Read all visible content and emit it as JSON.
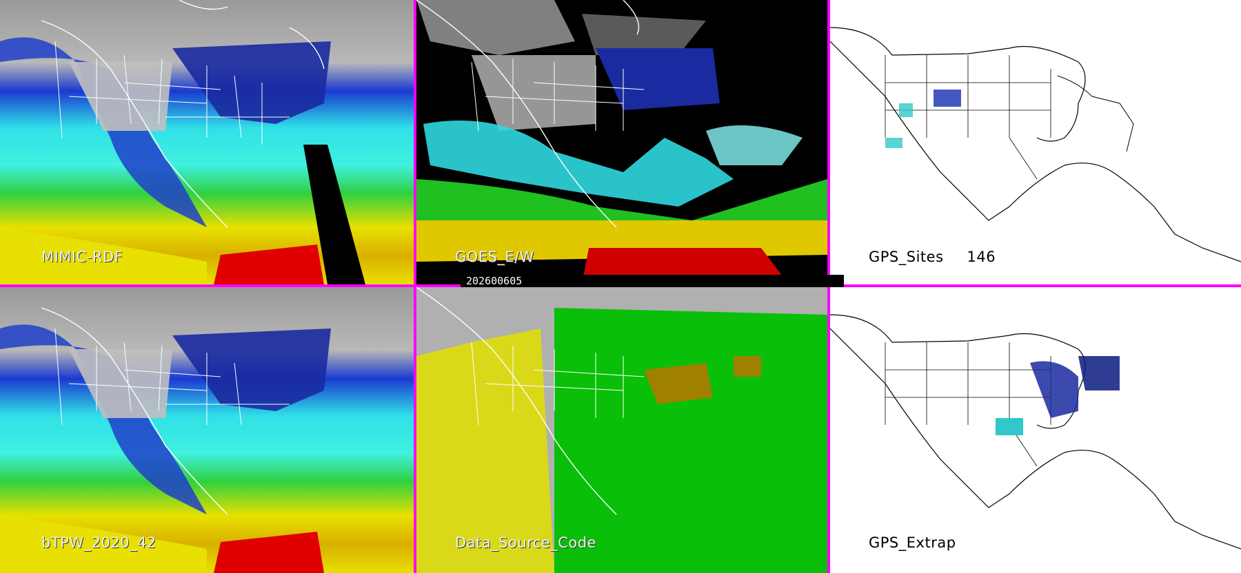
{
  "panels": [
    {
      "id": "mimic",
      "label": "MIMIC-RDF"
    },
    {
      "id": "goes",
      "label": "GOES_E/W"
    },
    {
      "id": "gps-sites",
      "label": "GPS_Sites",
      "count": "146"
    },
    {
      "id": "btpw",
      "label": "bTPW_2020_42"
    },
    {
      "id": "source",
      "label": "Data_Source_Code"
    },
    {
      "id": "gps-extrap",
      "label": "GPS_Extrap"
    }
  ],
  "date_bar": "202600605",
  "colors": {
    "border": "#ff00ff",
    "tpw_scale": [
      "#1020a0",
      "#2040c8",
      "#00d8e0",
      "#40f0f0",
      "#20c020",
      "#80e020",
      "#e8e000",
      "#c8a000",
      "#e00000",
      "#ff40ff"
    ],
    "source_gps": "#e0e000",
    "source_goes": "#00c000",
    "source_mimic": "#b0b0b0",
    "source_other": "#a08000"
  }
}
